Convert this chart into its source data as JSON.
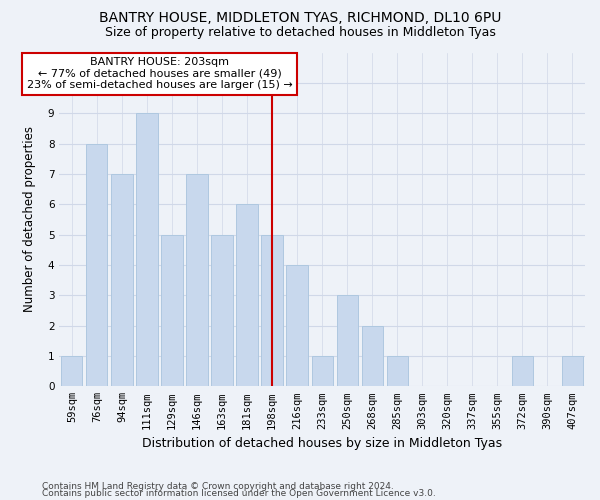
{
  "title1": "BANTRY HOUSE, MIDDLETON TYAS, RICHMOND, DL10 6PU",
  "title2": "Size of property relative to detached houses in Middleton Tyas",
  "xlabel": "Distribution of detached houses by size in Middleton Tyas",
  "ylabel": "Number of detached properties",
  "categories": [
    "59sqm",
    "76sqm",
    "94sqm",
    "111sqm",
    "129sqm",
    "146sqm",
    "163sqm",
    "181sqm",
    "198sqm",
    "216sqm",
    "233sqm",
    "250sqm",
    "268sqm",
    "285sqm",
    "303sqm",
    "320sqm",
    "337sqm",
    "355sqm",
    "372sqm",
    "390sqm",
    "407sqm"
  ],
  "values": [
    1,
    8,
    7,
    9,
    5,
    7,
    5,
    6,
    5,
    4,
    1,
    3,
    2,
    1,
    0,
    0,
    0,
    0,
    1,
    0,
    1
  ],
  "bar_color": "#c8d8ed",
  "bar_edgecolor": "#afc8e0",
  "red_line_index": 8,
  "red_line_color": "#cc0000",
  "annotation_text": "BANTRY HOUSE: 203sqm\n← 77% of detached houses are smaller (49)\n23% of semi-detached houses are larger (15) →",
  "annotation_box_edgecolor": "#cc0000",
  "annotation_box_facecolor": "#ffffff",
  "ylim": [
    0,
    11
  ],
  "yticks": [
    0,
    1,
    2,
    3,
    4,
    5,
    6,
    7,
    8,
    9,
    10,
    11
  ],
  "footer1": "Contains HM Land Registry data © Crown copyright and database right 2024.",
  "footer2": "Contains public sector information licensed under the Open Government Licence v3.0.",
  "background_color": "#eef2f8",
  "grid_color": "#d0d8e8",
  "title1_fontsize": 10,
  "title2_fontsize": 9,
  "xlabel_fontsize": 9,
  "ylabel_fontsize": 8.5,
  "tick_fontsize": 7.5,
  "footer_fontsize": 6.5,
  "annotation_fontsize": 8
}
